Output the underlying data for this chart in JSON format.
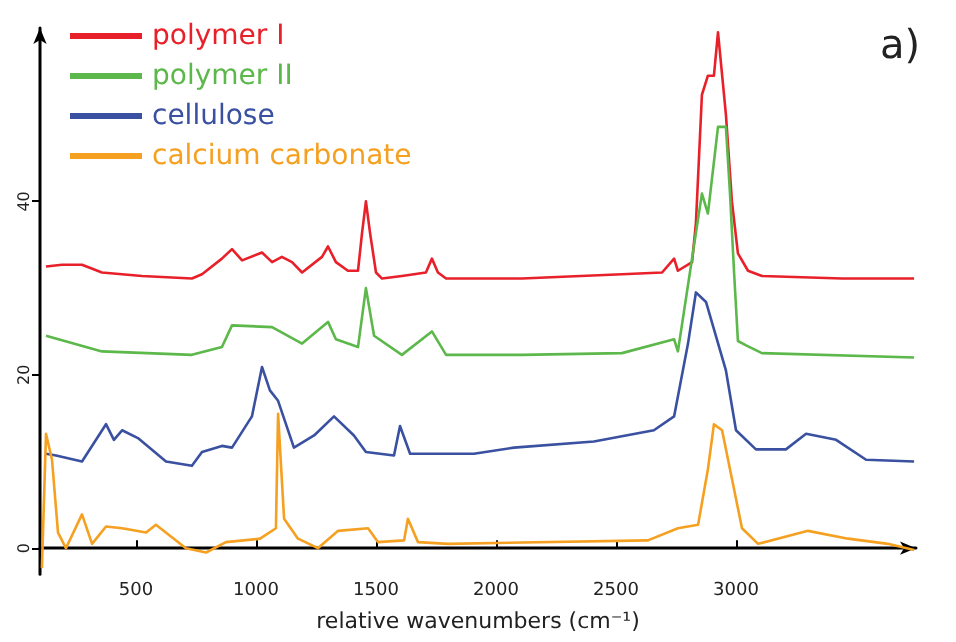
{
  "chart_data": {
    "type": "line",
    "xlabel": "relative wavenumbers (cm⁻¹)",
    "xlim": [
      100,
      3750
    ],
    "xticks": [
      500,
      1000,
      1500,
      2000,
      2500,
      3000
    ],
    "ylim": [
      -3,
      60
    ],
    "yticks": [
      0,
      20,
      40
    ],
    "grid": false,
    "legend": "top left",
    "marker": "none",
    "line_style": "solid",
    "annotations": [
      "a)"
    ],
    "series": [
      {
        "name": "polymer I",
        "color": "#e8202a",
        "x": [
          125,
          192,
          275,
          358,
          525,
          733,
          775,
          858,
          900,
          942,
          1025,
          1067,
          1108,
          1150,
          1192,
          1275,
          1300,
          1333,
          1383,
          1425,
          1442,
          1458,
          1475,
          1500,
          1525,
          1608,
          1708,
          1733,
          1758,
          1792,
          2108,
          2525,
          2692,
          2742,
          2758,
          2817,
          2833,
          2858,
          2883,
          2908,
          2925,
          2958,
          2983,
          3008,
          3050,
          3108,
          3442,
          3742
        ],
        "values": [
          32.5,
          32.7,
          32.7,
          31.8,
          31.4,
          31.1,
          31.6,
          33.4,
          34.5,
          33.2,
          34.1,
          33,
          33.6,
          33,
          31.8,
          33.6,
          34.8,
          33,
          32,
          32,
          36.4,
          40,
          36.4,
          31.8,
          31.1,
          31.4,
          31.8,
          33.4,
          31.8,
          31.1,
          31.1,
          31.6,
          31.8,
          33.4,
          32,
          33,
          37.5,
          52.3,
          54.5,
          54.5,
          59.5,
          50,
          40,
          34,
          32,
          31.4,
          31.1,
          31.1
        ]
      },
      {
        "name": "polymer II",
        "color": "#5cb84a",
        "x": [
          125,
          358,
          733,
          858,
          900,
          1067,
          1192,
          1300,
          1333,
          1425,
          1458,
          1492,
          1608,
          1733,
          1792,
          2108,
          2525,
          2742,
          2758,
          2858,
          2883,
          2925,
          2958,
          2975,
          2992,
          3008,
          3042,
          3108,
          3742
        ],
        "values": [
          24.5,
          22.7,
          22.3,
          23.2,
          25.7,
          25.5,
          23.6,
          26.1,
          24.1,
          23.2,
          30,
          24.5,
          22.3,
          25,
          22.3,
          22.3,
          22.5,
          24.1,
          22.7,
          40.9,
          38.6,
          48.6,
          48.6,
          40.9,
          31.8,
          23.9,
          23.4,
          22.5,
          22.0
        ]
      },
      {
        "name": "cellulose",
        "color": "#3a50a0",
        "x": [
          125,
          167,
          275,
          375,
          408,
          442,
          508,
          625,
          733,
          775,
          858,
          900,
          983,
          1025,
          1058,
          1092,
          1158,
          1242,
          1325,
          1408,
          1458,
          1575,
          1600,
          1642,
          1908,
          2075,
          2408,
          2658,
          2742,
          2800,
          2833,
          2875,
          2958,
          3000,
          3083,
          3208,
          3292,
          3417,
          3542,
          3742
        ],
        "values": [
          10.9,
          10.7,
          10,
          14.3,
          12.5,
          13.6,
          12.7,
          10,
          9.5,
          11.1,
          11.8,
          11.6,
          15.2,
          20.9,
          18.2,
          17,
          11.6,
          13,
          15.2,
          13,
          11.1,
          10.7,
          14.1,
          10.9,
          10.9,
          11.6,
          12.3,
          13.6,
          15.2,
          23.6,
          29.5,
          28.4,
          20.5,
          13.6,
          11.4,
          11.4,
          13.2,
          12.5,
          10.2,
          10
        ]
      },
      {
        "name": "calcium carbonate",
        "color": "#f5a020",
        "x": [
          108,
          125,
          150,
          175,
          208,
          275,
          317,
          375,
          442,
          542,
          583,
          708,
          792,
          875,
          1017,
          1083,
          1092,
          1117,
          1175,
          1258,
          1342,
          1467,
          1508,
          1617,
          1633,
          1675,
          1800,
          2633,
          2758,
          2842,
          2883,
          2908,
          2942,
          2983,
          3025,
          3092,
          3300,
          3467,
          3633,
          3742
        ],
        "values": [
          -2.3,
          13.2,
          10.2,
          1.8,
          0,
          3.9,
          0.5,
          2.5,
          2.3,
          1.8,
          2.7,
          0,
          -0.5,
          0.7,
          1.1,
          2.3,
          15.5,
          3.4,
          1.1,
          0,
          2,
          2.3,
          0.7,
          0.9,
          3.4,
          0.7,
          0.5,
          0.9,
          2.3,
          2.7,
          9.1,
          14.3,
          13.6,
          8,
          2.3,
          0.5,
          2,
          1.1,
          0.5,
          -0.2
        ]
      }
    ]
  }
}
